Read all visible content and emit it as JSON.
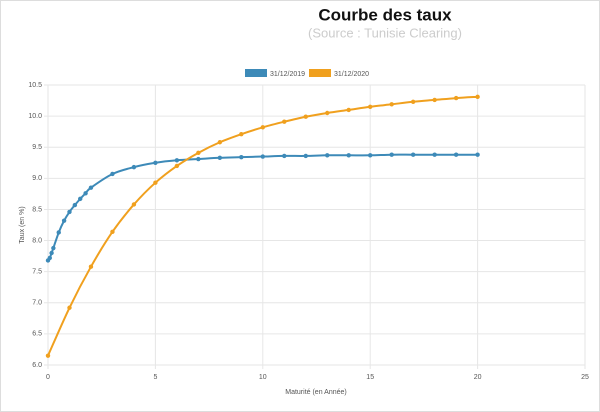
{
  "chart_data": {
    "type": "line",
    "title": "Courbe des taux",
    "subtitle": "(Source : Tunisie Clearing)",
    "xlabel": "Maturité (en Année)",
    "ylabel": "Taux (en %)",
    "xlim": [
      0,
      25
    ],
    "xticks": [
      0,
      5,
      10,
      15,
      20,
      25
    ],
    "ylim": [
      6,
      10.5
    ],
    "yticks": [
      {
        "value": 6,
        "label": "6.0"
      },
      {
        "value": 6.5,
        "label": "6.5"
      },
      {
        "value": 7,
        "label": "7.0"
      },
      {
        "value": 7.5,
        "label": "7.5"
      },
      {
        "value": 8,
        "label": "8.0"
      },
      {
        "value": 8.5,
        "label": "8.5"
      },
      {
        "value": 9,
        "label": "9.0"
      },
      {
        "value": 9.5,
        "label": "9.5"
      },
      {
        "value": 10,
        "label": "10.0"
      },
      {
        "value": 10.5,
        "label": "10.5"
      }
    ],
    "grid": true,
    "legend": "top",
    "series": [
      {
        "name": "31/12/2019",
        "color": "#3d8ab8",
        "x": [
          0,
          0.083,
          0.167,
          0.25,
          0.5,
          0.75,
          1,
          1.25,
          1.5,
          1.75,
          2,
          3,
          4,
          5,
          6,
          7,
          8,
          9,
          10,
          11,
          12,
          13,
          14,
          15,
          16,
          17,
          18,
          19,
          20
        ],
        "values": [
          7.68,
          7.72,
          7.8,
          7.88,
          8.13,
          8.32,
          8.46,
          8.57,
          8.67,
          8.76,
          8.85,
          9.07,
          9.18,
          9.25,
          9.29,
          9.31,
          9.33,
          9.34,
          9.35,
          9.36,
          9.36,
          9.37,
          9.37,
          9.37,
          9.38,
          9.38,
          9.38,
          9.38,
          9.38
        ]
      },
      {
        "name": "31/12/2020",
        "color": "#f0a01e",
        "x": [
          0,
          1,
          2,
          3,
          4,
          5,
          6,
          7,
          8,
          9,
          10,
          11,
          12,
          13,
          14,
          15,
          16,
          17,
          18,
          19,
          20
        ],
        "values": [
          6.15,
          6.92,
          7.58,
          8.14,
          8.58,
          8.93,
          9.2,
          9.41,
          9.58,
          9.71,
          9.82,
          9.91,
          9.99,
          10.05,
          10.1,
          10.15,
          10.19,
          10.23,
          10.26,
          10.29,
          10.31
        ]
      }
    ]
  }
}
